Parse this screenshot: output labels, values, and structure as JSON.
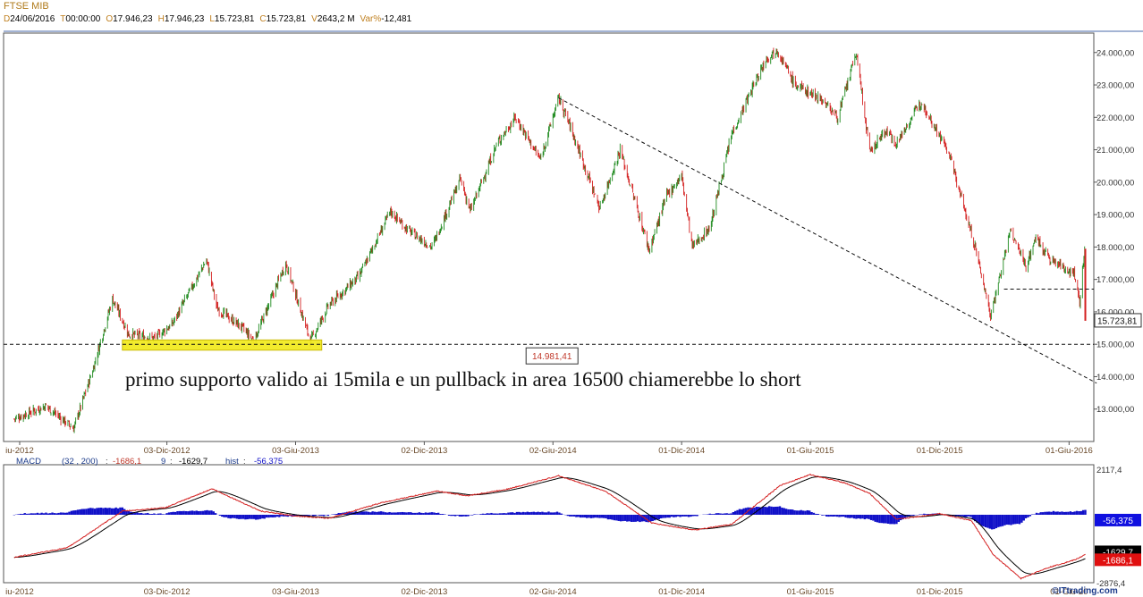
{
  "header": {
    "title": "FTSE MIB",
    "stats": [
      {
        "key": "D",
        "value": "24/06/2016"
      },
      {
        "key": "T",
        "value": "00:00:00"
      },
      {
        "key": "O",
        "value": "17.946,23"
      },
      {
        "key": "H",
        "value": "17.946,23"
      },
      {
        "key": "L",
        "value": "15.723,81"
      },
      {
        "key": "C",
        "value": "15.723,81"
      },
      {
        "key": "V",
        "value": "2643,2 M"
      },
      {
        "key": "Var%",
        "value": "-12,481"
      }
    ]
  },
  "chart_data": {
    "type": "candlestick",
    "price_axis": {
      "ylim": [
        12000,
        24600
      ],
      "ticks": [
        13000,
        14000,
        15000,
        16000,
        17000,
        18000,
        19000,
        20000,
        21000,
        22000,
        23000,
        24000
      ],
      "tick_labels": [
        "13.000,00",
        "14.000,00",
        "15.000,00",
        "16.000,00",
        "17.000,00",
        "18.000,00",
        "19.000,00",
        "20.000,00",
        "21.000,00",
        "22.000,00",
        "23.000,00",
        "24.000,00"
      ],
      "last_price_label": "15.723,81",
      "last_price": 15723.81
    },
    "x_labels": [
      "iu-2012",
      "03-Dic-2012",
      "03-Giu-2013",
      "02-Dic-2013",
      "02-Giu-2014",
      "01-Dic-2014",
      "01-Giu-2015",
      "01-Dic-2015",
      "01-Giu-2016"
    ],
    "x_label_dates": [
      "2012-06-01",
      "2012-12-03",
      "2013-06-03",
      "2013-12-02",
      "2014-06-02",
      "2014-12-01",
      "2015-06-01",
      "2015-12-01",
      "2016-06-01"
    ],
    "macd_x_labels": [
      "iu-2012",
      "03-Dic-2012",
      "03-Giu-2013",
      "02-Dic-2013",
      "02-Giu-2014",
      "01-Dic-2014",
      "01-Giu-2015",
      "01-Dic-2015",
      "01-Giu-20"
    ],
    "price_anchors": [
      [
        "2012-05-01",
        12700
      ],
      [
        "2012-06-15",
        13100
      ],
      [
        "2012-07-24",
        12400
      ],
      [
        "2012-08-20",
        14200
      ],
      [
        "2012-09-17",
        16400
      ],
      [
        "2012-10-10",
        15300
      ],
      [
        "2012-11-15",
        15200
      ],
      [
        "2012-12-10",
        15600
      ],
      [
        "2013-01-28",
        17600
      ],
      [
        "2013-02-12",
        16100
      ],
      [
        "2013-03-20",
        15500
      ],
      [
        "2013-04-05",
        15100
      ],
      [
        "2013-05-20",
        17500
      ],
      [
        "2013-06-24",
        15100
      ],
      [
        "2013-07-20",
        16200
      ],
      [
        "2013-09-01",
        17100
      ],
      [
        "2013-10-15",
        19100
      ],
      [
        "2013-11-10",
        18500
      ],
      [
        "2013-12-13",
        18000
      ],
      [
        "2014-01-22",
        20100
      ],
      [
        "2014-02-05",
        19100
      ],
      [
        "2014-03-15",
        21200
      ],
      [
        "2014-04-10",
        22000
      ],
      [
        "2014-05-15",
        20700
      ],
      [
        "2014-06-10",
        22600
      ],
      [
        "2014-06-25",
        21800
      ],
      [
        "2014-08-07",
        19200
      ],
      [
        "2014-09-05",
        21000
      ],
      [
        "2014-10-16",
        17900
      ],
      [
        "2014-11-10",
        19600
      ],
      [
        "2014-12-01",
        20200
      ],
      [
        "2014-12-16",
        18000
      ],
      [
        "2015-01-10",
        18600
      ],
      [
        "2015-02-10",
        21500
      ],
      [
        "2015-03-30",
        23800
      ],
      [
        "2015-04-15",
        24100
      ],
      [
        "2015-05-10",
        23000
      ],
      [
        "2015-06-15",
        22600
      ],
      [
        "2015-07-10",
        22000
      ],
      [
        "2015-08-05",
        24000
      ],
      [
        "2015-08-24",
        20900
      ],
      [
        "2015-09-15",
        21600
      ],
      [
        "2015-10-01",
        21200
      ],
      [
        "2015-11-05",
        22500
      ],
      [
        "2015-12-14",
        20900
      ],
      [
        "2016-01-20",
        18000
      ],
      [
        "2016-02-11",
        15900
      ],
      [
        "2016-03-10",
        18500
      ],
      [
        "2016-04-01",
        17400
      ],
      [
        "2016-04-15",
        18300
      ],
      [
        "2016-05-05",
        17600
      ],
      [
        "2016-06-08",
        17200
      ],
      [
        "2016-06-16",
        16300
      ],
      [
        "2016-06-23",
        17950
      ]
    ],
    "final_candle": {
      "date": "2016-06-24",
      "open": 17946.23,
      "high": 17946.23,
      "low": 15723.81,
      "close": 15723.81
    },
    "lines": [
      {
        "name": "resistance-trendline",
        "style": "dashed",
        "from": [
          "2014-06-10",
          22600
        ],
        "to": [
          "2016-07-10",
          13800
        ]
      },
      {
        "name": "support-15000",
        "style": "dashed",
        "level": 15000
      },
      {
        "name": "pullback-16700",
        "style": "dashed",
        "level": 16700,
        "from_date": "2016-03-01"
      }
    ],
    "support_zone": {
      "from": "2012-10-01",
      "to": "2013-07-10",
      "low": 14900,
      "high": 15050,
      "color": "#f2ea22"
    },
    "annotations": {
      "box_value": "14.981,41",
      "text": "primo supporto valido ai 15mila e un pullback in area 16500 chiamerebbe lo short"
    },
    "macd": {
      "title": "MACD",
      "params": "(32 , 200)",
      "macd_value": "-1686,1",
      "signal_period": "9",
      "signal_value": "-1629,7",
      "hist_label": "hist",
      "hist_value": "-56,375",
      "axis_top_label": "2117,4",
      "axis_bottom_label": "-2876,4",
      "ylim": [
        -2876.4,
        2117.4
      ],
      "last_macd": -1686.1,
      "last_signal": -1629.7,
      "last_hist": -56.375,
      "anchors": [
        [
          "2012-05-01",
          -1800
        ],
        [
          "2012-07-15",
          -1400
        ],
        [
          "2012-10-01",
          150
        ],
        [
          "2012-12-01",
          300
        ],
        [
          "2013-02-05",
          1100
        ],
        [
          "2013-04-15",
          150
        ],
        [
          "2013-06-03",
          -50
        ],
        [
          "2013-07-20",
          -150
        ],
        [
          "2013-10-01",
          500
        ],
        [
          "2013-12-20",
          1000
        ],
        [
          "2014-02-01",
          800
        ],
        [
          "2014-04-01",
          1100
        ],
        [
          "2014-06-10",
          1650
        ],
        [
          "2014-08-15",
          1000
        ],
        [
          "2014-10-20",
          -350
        ],
        [
          "2014-12-20",
          -650
        ],
        [
          "2015-02-10",
          -400
        ],
        [
          "2015-04-20",
          1250
        ],
        [
          "2015-06-01",
          1700
        ],
        [
          "2015-07-20",
          1350
        ],
        [
          "2015-08-24",
          900
        ],
        [
          "2015-10-01",
          -200
        ],
        [
          "2015-12-01",
          50
        ],
        [
          "2016-01-15",
          -250
        ],
        [
          "2016-02-15",
          -1700
        ],
        [
          "2016-03-25",
          -2700
        ],
        [
          "2016-05-01",
          -2250
        ],
        [
          "2016-06-10",
          -1900
        ],
        [
          "2016-06-24",
          -1686
        ]
      ]
    },
    "colors": {
      "up": "#1e8a1e",
      "down": "#d42020",
      "macd_line": "#d42020",
      "signal_line": "#000000",
      "hist": "#1010c8",
      "grid": "#000000"
    }
  },
  "watermark": "©ITtrading.com"
}
